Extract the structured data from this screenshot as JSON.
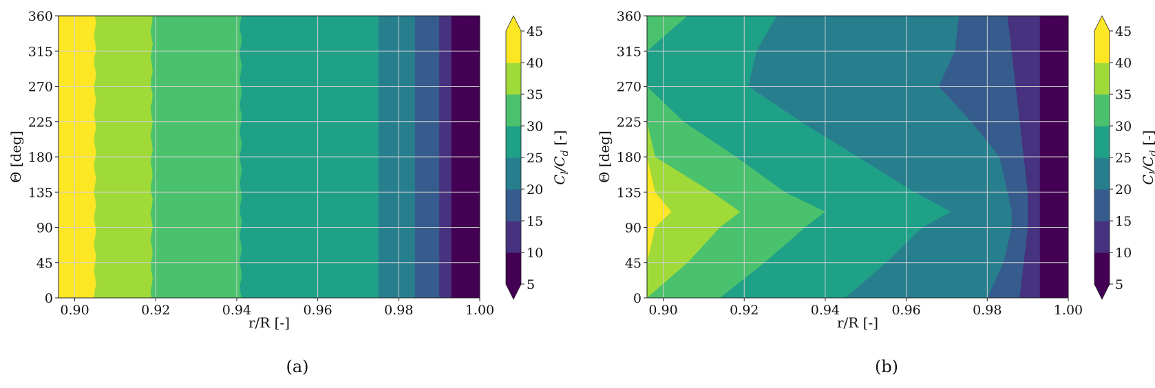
{
  "figure": {
    "panels": [
      "(a)",
      "(b)"
    ]
  },
  "colorbar": {
    "label": "C_l/C_d [-]",
    "ticks": [
      "5",
      "10",
      "15",
      "20",
      "25",
      "30",
      "35",
      "40",
      "45"
    ],
    "levels": [
      5,
      10,
      15,
      20,
      25,
      30,
      35,
      40,
      45
    ],
    "colors": [
      "#440154",
      "#46327e",
      "#365c8d",
      "#277f8e",
      "#1fa187",
      "#4ac16d",
      "#a0da39",
      "#fde725"
    ],
    "under_color": "#440154",
    "over_color": "#fde725"
  },
  "chart_data": [
    {
      "type": "heatmap",
      "panel": "(a)",
      "xlabel": "r/R [-]",
      "ylabel": "Θ [deg]",
      "xlim": [
        0.896,
        1.0
      ],
      "ylim": [
        0,
        360
      ],
      "xticks": [
        "0.90",
        "0.92",
        "0.94",
        "0.96",
        "0.98",
        "1.00"
      ],
      "yticks": [
        "0",
        "45",
        "90",
        "135",
        "180",
        "225",
        "270",
        "315",
        "360"
      ],
      "grid": true,
      "colorbar_label": "C_l/C_d [-]",
      "band_boundaries_r": [
        0.905,
        0.919,
        0.941,
        0.975,
        0.984,
        0.99,
        0.993,
        0.996
      ],
      "band_levels": [
        "40-45",
        "35-40",
        "30-35",
        "25-30",
        "20-25",
        "15-20",
        "10-15",
        "5-10"
      ]
    },
    {
      "type": "heatmap",
      "panel": "(b)",
      "xlabel": "r/R [-]",
      "ylabel": "Θ [deg]",
      "xlim": [
        0.896,
        1.0
      ],
      "ylim": [
        0,
        360
      ],
      "xticks": [
        "0.90",
        "0.92",
        "0.94",
        "0.96",
        "0.98",
        "1.00"
      ],
      "yticks": [
        "0",
        "45",
        "90",
        "135",
        "180",
        "225",
        "270",
        "315",
        "360"
      ],
      "grid": true,
      "colorbar_label": "C_l/C_d [-]",
      "theta_samples": [
        0,
        45,
        90,
        110,
        135,
        180,
        225,
        270,
        315,
        360
      ],
      "contours": [
        {
          "level": 40,
          "r": [
            0.896,
            0.896,
            0.898,
            0.902,
            0.898,
            0.896,
            0.896,
            0.896,
            0.896,
            0.896
          ]
        },
        {
          "level": 35,
          "r": [
            0.896,
            0.906,
            0.914,
            0.919,
            0.912,
            0.898,
            0.896,
            0.896,
            0.896,
            0.896
          ]
        },
        {
          "level": 30,
          "r": [
            0.914,
            0.925,
            0.935,
            0.94,
            0.93,
            0.918,
            0.905,
            0.896,
            0.896,
            0.906
          ]
        },
        {
          "level": 25,
          "r": [
            0.945,
            0.955,
            0.964,
            0.971,
            0.962,
            0.948,
            0.934,
            0.921,
            0.923,
            0.928
          ]
        },
        {
          "level": 20,
          "r": [
            0.98,
            0.984,
            0.986,
            0.986,
            0.985,
            0.983,
            0.976,
            0.968,
            0.972,
            0.973
          ]
        },
        {
          "level": 15,
          "r": [
            0.988,
            0.989,
            0.99,
            0.99,
            0.99,
            0.989,
            0.988,
            0.987,
            0.986,
            0.985
          ]
        },
        {
          "level": 10,
          "r": [
            0.993,
            0.993,
            0.993,
            0.993,
            0.993,
            0.993,
            0.993,
            0.993,
            0.993,
            0.993
          ]
        },
        {
          "level": 5,
          "r": [
            0.997,
            0.997,
            0.997,
            0.997,
            0.997,
            0.997,
            0.997,
            0.997,
            0.997,
            0.997
          ]
        }
      ]
    }
  ]
}
